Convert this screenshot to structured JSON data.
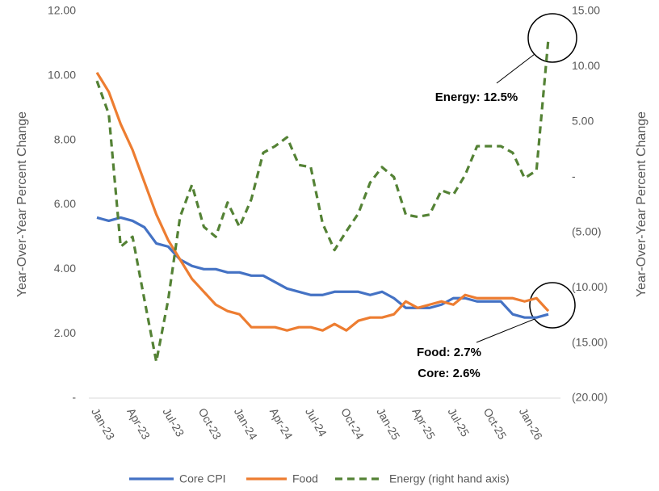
{
  "chart_data": {
    "type": "line",
    "y_label": "Year-Over-Year Percent Change",
    "y2_label": "Year-Over-Year Percent Change",
    "categories": [
      "Jan-23",
      null,
      null,
      "Apr-23",
      null,
      null,
      "Jul-23",
      null,
      null,
      "Oct-23",
      null,
      null,
      "Jan-24",
      null,
      null,
      "Apr-24",
      null,
      null,
      "Jul-24",
      null,
      null,
      "Oct-24",
      null,
      null,
      "Jan-25",
      null,
      null,
      "Apr-25",
      null,
      null,
      "Jul-25",
      null,
      null,
      "Oct-25",
      null,
      null,
      "Jan-26",
      null,
      null
    ],
    "series": [
      {
        "name": "Core CPI",
        "color": "#4472c4",
        "axis": "y",
        "dashed": false,
        "values": [
          5.6,
          5.5,
          5.6,
          5.5,
          5.3,
          4.8,
          4.7,
          4.3,
          4.1,
          4.0,
          4.0,
          3.9,
          3.9,
          3.8,
          3.8,
          3.6,
          3.4,
          3.3,
          3.2,
          3.2,
          3.3,
          3.3,
          3.3,
          3.2,
          3.3,
          3.1,
          2.8,
          2.8,
          2.8,
          2.9,
          3.1,
          3.1,
          3.0,
          3.0,
          3.0,
          2.6,
          2.5,
          2.5,
          2.6
        ]
      },
      {
        "name": "Food",
        "color": "#ed7d31",
        "axis": "y",
        "dashed": false,
        "values": [
          10.1,
          9.5,
          8.5,
          7.7,
          6.7,
          5.7,
          4.9,
          4.3,
          3.7,
          3.3,
          2.9,
          2.7,
          2.6,
          2.2,
          2.2,
          2.2,
          2.1,
          2.2,
          2.2,
          2.1,
          2.3,
          2.1,
          2.4,
          2.5,
          2.5,
          2.6,
          3.0,
          2.8,
          2.9,
          3.0,
          2.9,
          3.2,
          3.1,
          3.1,
          3.1,
          3.1,
          3.0,
          3.1,
          2.7
        ]
      },
      {
        "name": "Energy (right hand axis)",
        "color": "#548235",
        "axis": "y2",
        "dashed": true,
        "values": [
          8.7,
          5.7,
          -6.3,
          -5.4,
          -11.1,
          -16.7,
          -11.1,
          -3.6,
          -0.7,
          -4.5,
          -5.4,
          -2.3,
          -4.5,
          -2.0,
          2.2,
          2.8,
          3.6,
          1.1,
          0.9,
          -4.2,
          -6.6,
          -4.9,
          -3.3,
          -0.5,
          0.9,
          0.0,
          -3.4,
          -3.6,
          -3.4,
          -1.2,
          -1.6,
          0.2,
          2.8,
          2.8,
          2.8,
          2.2,
          -0.1,
          0.6,
          12.5
        ]
      }
    ],
    "ylim": [
      0,
      12
    ],
    "yticks": [
      {
        "value": 0,
        "label": "-"
      },
      {
        "value": 2,
        "label": "2.00"
      },
      {
        "value": 4,
        "label": "4.00"
      },
      {
        "value": 6,
        "label": "6.00"
      },
      {
        "value": 8,
        "label": "8.00"
      },
      {
        "value": 10,
        "label": "10.00"
      },
      {
        "value": 12,
        "label": "12.00"
      }
    ],
    "y2lim": [
      -20,
      15
    ],
    "y2ticks": [
      {
        "value": -20,
        "label": "(20.00)"
      },
      {
        "value": -15,
        "label": "(15.00)"
      },
      {
        "value": -10,
        "label": "(10.00)"
      },
      {
        "value": -5,
        "label": "(5.00)"
      },
      {
        "value": 0,
        "label": "-"
      },
      {
        "value": 5,
        "label": "5.00"
      },
      {
        "value": 10,
        "label": "10.00"
      },
      {
        "value": 15,
        "label": "15.00"
      }
    ],
    "grid": false,
    "legend": "bottom",
    "annotations": [
      "Energy: 12.5%",
      "Food: 2.7%",
      "Core: 2.6%"
    ]
  }
}
